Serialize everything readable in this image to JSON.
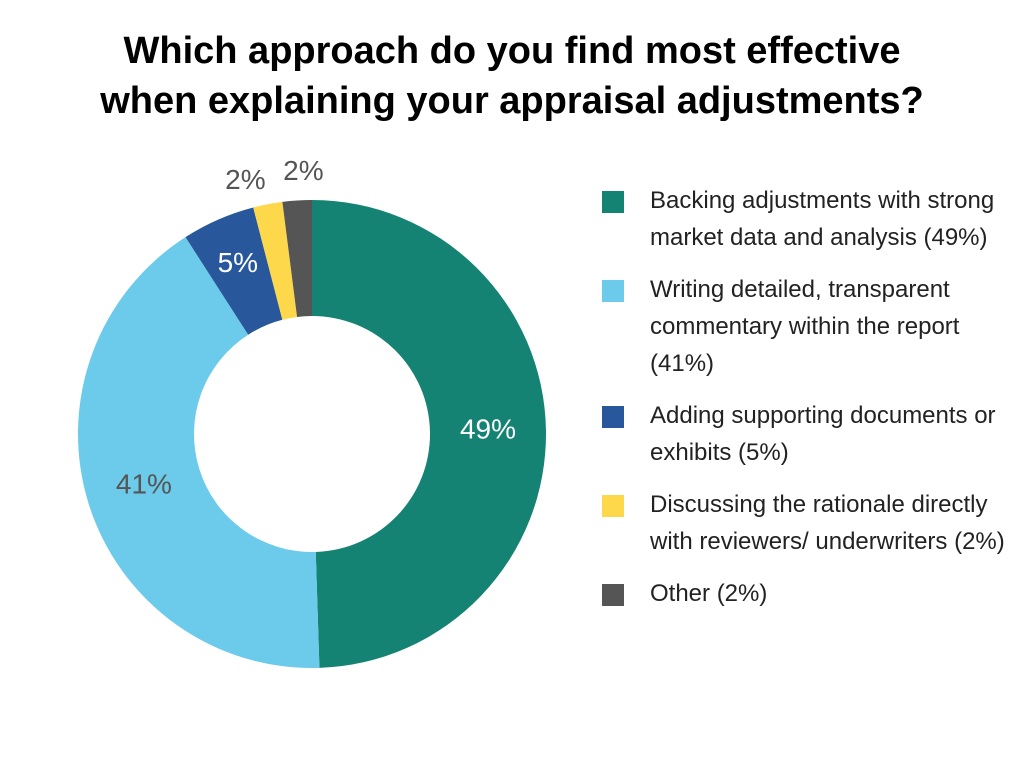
{
  "chart_data": {
    "type": "pie",
    "style": "donut",
    "title": [
      "Which approach do you find most effective",
      "when explaining your appraisal adjustments?"
    ],
    "categories": [
      "Backing adjustments with strong market data and analysis (49%)",
      "Writing detailed, transparent commentary within the report (41%)",
      "Adding supporting documents or exhibits (5%)",
      "Discussing the rationale directly with reviewers/ underwriters (2%)",
      "Other (2%)"
    ],
    "values": [
      49,
      41,
      5,
      2,
      2
    ],
    "data_labels": [
      "49%",
      "41%",
      "5%",
      "2%",
      "2%"
    ],
    "colors": [
      "#158373",
      "#6ccbea",
      "#28589b",
      "#fcd84a",
      "#555555"
    ],
    "label_colors": [
      "#ffffff",
      "#555555",
      "#ffffff",
      "#555555",
      "#555555"
    ],
    "legend_position": "right"
  }
}
